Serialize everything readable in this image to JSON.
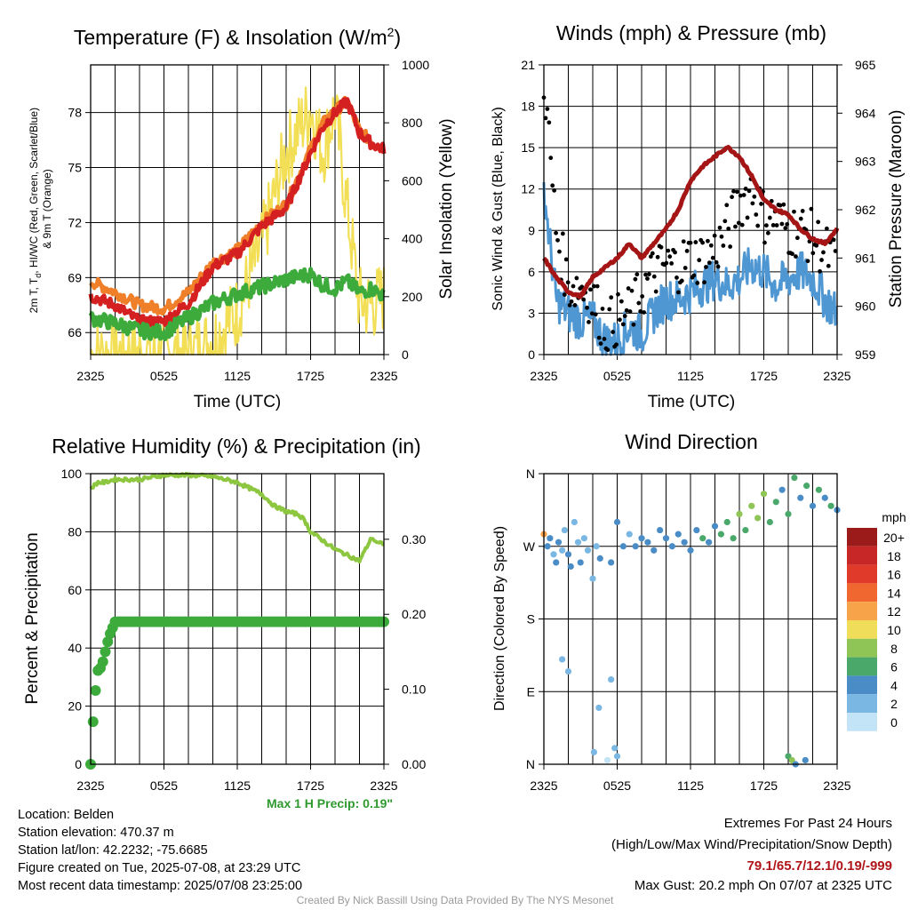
{
  "colors": {
    "red": "#d42020",
    "orange": "#f07f2a",
    "green": "#3cab3c",
    "yellow": "#f2df55",
    "blue": "#4f97d2",
    "maroon": "#a51515",
    "black": "#000000",
    "rh": "#8dc63f",
    "precip": "#3cab3c",
    "extremes": "#b0151a",
    "credit": "#9a9a9a"
  },
  "panels": {
    "temp": {
      "title": "Temperature (F) & Insolation (W/m²)",
      "ylabel": "2m T, Td, HI/WC (Red, Green, Scarlet/Blue) & 9m T (Orange)",
      "ylabel_line1": "2m T, T",
      "ylabel_sub": "d",
      "ylabel_line1b": ", HI/WC (Red, Green, Scarlet/Blue)",
      "ylabel_line2": "& 9m T (Orange)",
      "y2label": "Solar Insolation (Yellow)",
      "xlabel": "Time (UTC)"
    },
    "wind": {
      "title": "Winds (mph) & Pressure (mb)",
      "ylabel": "Sonic Wind & Gust (Blue, Black)",
      "y2label": "Station Pressure (Maroon)",
      "xlabel": "Time (UTC)"
    },
    "rh": {
      "title": "Relative Humidity (%) & Precipitation (in)",
      "ylabel": "Percent & Precipitation",
      "max_precip": "Max 1 H Precip: 0.19\""
    },
    "dir": {
      "title": "Wind Direction",
      "ylabel": "Direction (Colored By Speed)",
      "legend_title": "mph",
      "legend_labels": [
        "20+",
        "18",
        "16",
        "14",
        "12",
        "10",
        "8",
        "6",
        "4",
        "2",
        "0"
      ],
      "legend_colors": [
        "#9b1b1b",
        "#c72727",
        "#e03a2a",
        "#f0682f",
        "#f7a34a",
        "#f0de5a",
        "#8fc456",
        "#4aa86a",
        "#4a8cc6",
        "#7ab8e3",
        "#c3e4f6"
      ]
    }
  },
  "info": {
    "location": "Location: Belden",
    "elevation": "Station elevation: 470.37 m",
    "latlon": "Station lat/lon: 42.2232; -75.6685",
    "created": "Figure created on Tue, 2025-07-08, at 23:29 UTC",
    "recent": "Most recent data timestamp: 2025/07/08 23:25:00"
  },
  "extremes": {
    "title": "Extremes For Past 24 Hours",
    "subtitle": "(High/Low/Max Wind/Precipitation/Snow Depth)",
    "values": "79.1/65.7/12.1/0.19/-999",
    "max_gust": "Max Gust: 20.2 mph On 07/07 at 2325 UTC"
  },
  "credit": "Created By Nick Bassill Using Data Provided By The NYS Mesonet",
  "chart_data": [
    {
      "type": "line",
      "title": "Temperature (F) & Insolation (W/m²)",
      "xlabel": "Time (UTC)",
      "ylabel": "2m T, Td, HI/WC (Red, Green, Scarlet/Blue) & 9m T (Orange)",
      "y2label": "Solar Insolation (Yellow)",
      "x_ticks": [
        "2325",
        "0525",
        "1125",
        "1725",
        "2325"
      ],
      "x_hours": [
        0,
        2,
        4,
        6,
        8,
        10,
        12,
        14,
        16,
        18,
        19,
        20,
        21,
        22,
        23,
        24
      ],
      "ylim": [
        64.8,
        80.6
      ],
      "y_ticks": [
        66,
        69,
        72,
        75,
        78
      ],
      "y2lim": [
        0,
        1000
      ],
      "y2_ticks": [
        0,
        200,
        400,
        600,
        800,
        1000
      ],
      "series": [
        {
          "name": "2m T",
          "color": "red",
          "axis": "left",
          "values": [
            68.0,
            67.5,
            66.6,
            66.6,
            67.6,
            69.6,
            70.3,
            71.8,
            72.8,
            75.8,
            77.2,
            78.0,
            78.6,
            76.9,
            76.3,
            76.0
          ]
        },
        {
          "name": "9m T",
          "color": "orange",
          "axis": "left",
          "values": [
            68.8,
            68.2,
            67.5,
            67.3,
            68.2,
            69.8,
            70.5,
            72.0,
            73.0,
            76.0,
            77.4,
            78.1,
            78.6,
            77.0,
            76.4,
            76.1
          ]
        },
        {
          "name": "Td",
          "color": "green",
          "axis": "left",
          "values": [
            66.8,
            66.5,
            66.1,
            66.0,
            66.8,
            67.6,
            68.1,
            68.5,
            68.9,
            69.2,
            68.6,
            68.4,
            68.8,
            68.2,
            68.4,
            68.0
          ]
        },
        {
          "name": "Solar Insolation",
          "color": "yellow",
          "axis": "right",
          "values": [
            0,
            0,
            0,
            0,
            0,
            50,
            150,
            380,
            700,
            850,
            700,
            850,
            500,
            180,
            170,
            200
          ]
        }
      ]
    },
    {
      "type": "line",
      "title": "Winds (mph) & Pressure (mb)",
      "xlabel": "Time (UTC)",
      "ylabel": "Sonic Wind & Gust (Blue, Black)",
      "y2label": "Station Pressure (Maroon)",
      "x_ticks": [
        "2325",
        "0525",
        "1125",
        "1725",
        "2325"
      ],
      "x_hours": [
        0,
        1,
        2,
        3,
        4,
        5,
        6,
        7,
        8,
        9,
        10,
        11,
        12,
        13,
        14,
        15,
        16,
        17,
        18,
        19,
        20,
        21,
        22,
        23,
        24
      ],
      "ylim": [
        0,
        21
      ],
      "y_ticks": [
        0,
        3,
        6,
        9,
        12,
        15,
        18,
        21
      ],
      "y2lim": [
        959,
        965
      ],
      "y2_ticks": [
        959,
        960,
        961,
        962,
        963,
        964,
        965
      ],
      "series": [
        {
          "name": "Sonic Wind",
          "color": "blue",
          "axis": "left",
          "values": [
            12.0,
            4.0,
            3.0,
            2.5,
            2.5,
            1.0,
            1.0,
            2.0,
            1.5,
            3.0,
            4.0,
            4.0,
            4.5,
            5.0,
            5.5,
            5.0,
            5.5,
            6.5,
            6.0,
            5.0,
            5.5,
            6.0,
            5.5,
            4.0,
            3.0
          ]
        },
        {
          "name": "Gust",
          "color": "black",
          "axis": "left",
          "values": [
            20.2,
            9.0,
            5.0,
            5.0,
            4.0,
            2.0,
            2.5,
            3.0,
            4.5,
            6.0,
            6.5,
            6.5,
            7.0,
            7.0,
            7.5,
            9.0,
            11.0,
            12.1,
            10.0,
            10.0,
            9.0,
            9.0,
            8.5,
            7.5,
            6.5
          ]
        },
        {
          "name": "Station Pressure",
          "color": "maroon",
          "axis": "right",
          "values": [
            961.0,
            960.6,
            960.3,
            960.2,
            960.6,
            960.8,
            961.0,
            961.3,
            961.0,
            961.3,
            961.6,
            962.0,
            962.6,
            962.9,
            963.1,
            963.3,
            963.1,
            962.7,
            962.2,
            962.0,
            961.9,
            961.6,
            961.4,
            961.3,
            961.6
          ]
        }
      ]
    },
    {
      "type": "line",
      "title": "Relative Humidity (%) & Precipitation (in)",
      "ylabel": "Percent & Precipitation",
      "x_ticks": [
        "2325",
        "0525",
        "1125",
        "1725",
        "2325"
      ],
      "x_hours": [
        0,
        0.3,
        0.6,
        0.9,
        1.2,
        1.5,
        2,
        4,
        6,
        8,
        10,
        12,
        14,
        15,
        16,
        17,
        17.5,
        18,
        19,
        20,
        21,
        22,
        22.5,
        23,
        23.5,
        24
      ],
      "ylim": [
        0,
        100
      ],
      "y_ticks": [
        0,
        20,
        40,
        60,
        80,
        100
      ],
      "y2lim": [
        0,
        0.3875
      ],
      "y2_ticks": [
        0.0,
        0.1,
        0.2,
        0.3
      ],
      "series": [
        {
          "name": "Relative Humidity",
          "color": "rh",
          "axis": "left",
          "values": [
            95,
            96,
            97,
            97,
            97,
            97.5,
            98,
            98,
            99.5,
            99.5,
            99,
            97,
            93,
            89,
            87,
            86,
            84,
            80,
            77,
            74,
            72,
            70,
            74,
            78,
            76,
            76
          ]
        },
        {
          "name": "Precipitation",
          "color": "precip",
          "axis": "right",
          "values": [
            0.0,
            0.085,
            0.125,
            0.13,
            0.15,
            0.17,
            0.19,
            0.19,
            0.19,
            0.19,
            0.19,
            0.19,
            0.19,
            0.19,
            0.19,
            0.19,
            0.19,
            0.19,
            0.19,
            0.19,
            0.19,
            0.19,
            0.19,
            0.19,
            0.19,
            0.19
          ]
        }
      ],
      "annotation": "Max 1 H Precip: 0.19\""
    },
    {
      "type": "scatter",
      "title": "Wind Direction",
      "ylabel": "Direction (Colored By Speed)",
      "x_ticks": [
        "2325",
        "0525",
        "1125",
        "1725",
        "2325"
      ],
      "y_ticks": [
        "N",
        "E",
        "S",
        "W",
        "N"
      ],
      "y_degrees": [
        0,
        90,
        180,
        270,
        360
      ],
      "colorbar": {
        "title": "mph",
        "labels": [
          "20+",
          "18",
          "16",
          "14",
          "12",
          "10",
          "8",
          "6",
          "4",
          "2",
          "0"
        ]
      },
      "points_hour_dir_speed": [
        [
          0.0,
          285,
          12
        ],
        [
          0.3,
          270,
          4
        ],
        [
          0.5,
          280,
          3
        ],
        [
          0.8,
          260,
          2
        ],
        [
          1.0,
          250,
          4
        ],
        [
          1.2,
          275,
          3
        ],
        [
          1.5,
          265,
          2
        ],
        [
          1.7,
          290,
          1
        ],
        [
          2.0,
          260,
          4
        ],
        [
          2.2,
          245,
          3
        ],
        [
          2.5,
          300,
          2
        ],
        [
          2.8,
          275,
          1
        ],
        [
          3.0,
          250,
          3
        ],
        [
          3.3,
          280,
          2
        ],
        [
          3.6,
          265,
          1
        ],
        [
          4.0,
          230,
          2
        ],
        [
          4.3,
          270,
          1
        ],
        [
          4.6,
          255,
          3
        ],
        [
          1.5,
          130,
          1
        ],
        [
          2.0,
          115,
          1
        ],
        [
          4.1,
          15,
          1
        ],
        [
          4.5,
          70,
          1
        ],
        [
          5.5,
          105,
          1
        ],
        [
          5.8,
          20,
          1
        ],
        [
          6.0,
          10,
          1
        ],
        [
          5.2,
          5,
          0
        ],
        [
          5.5,
          250,
          4
        ],
        [
          6.0,
          300,
          3
        ],
        [
          6.5,
          270,
          4
        ],
        [
          7.0,
          285,
          2
        ],
        [
          7.5,
          270,
          4
        ],
        [
          8.0,
          280,
          3
        ],
        [
          8.5,
          275,
          4
        ],
        [
          9.0,
          265,
          3
        ],
        [
          9.5,
          290,
          4
        ],
        [
          10.0,
          280,
          4
        ],
        [
          10.5,
          270,
          3
        ],
        [
          11.0,
          285,
          4
        ],
        [
          11.5,
          275,
          4
        ],
        [
          12.0,
          265,
          3
        ],
        [
          12.5,
          290,
          4
        ],
        [
          13.0,
          280,
          5
        ],
        [
          13.5,
          275,
          4
        ],
        [
          14.0,
          295,
          4
        ],
        [
          14.5,
          285,
          5
        ],
        [
          15.0,
          300,
          6
        ],
        [
          15.5,
          280,
          5
        ],
        [
          16.0,
          310,
          7
        ],
        [
          16.5,
          290,
          6
        ],
        [
          17.0,
          320,
          8
        ],
        [
          17.5,
          305,
          7
        ],
        [
          18.0,
          335,
          8
        ],
        [
          18.5,
          300,
          6
        ],
        [
          19.0,
          325,
          5
        ],
        [
          19.5,
          340,
          4
        ],
        [
          20.0,
          310,
          6
        ],
        [
          20.5,
          355,
          5
        ],
        [
          21.0,
          330,
          4
        ],
        [
          21.5,
          345,
          5
        ],
        [
          22.0,
          320,
          4
        ],
        [
          22.5,
          340,
          5
        ],
        [
          23.0,
          330,
          4
        ],
        [
          23.5,
          320,
          5
        ],
        [
          24.0,
          315,
          4
        ],
        [
          20.0,
          10,
          6
        ],
        [
          20.3,
          5,
          7
        ],
        [
          20.6,
          0,
          4
        ],
        [
          21.4,
          5,
          4
        ]
      ]
    }
  ]
}
